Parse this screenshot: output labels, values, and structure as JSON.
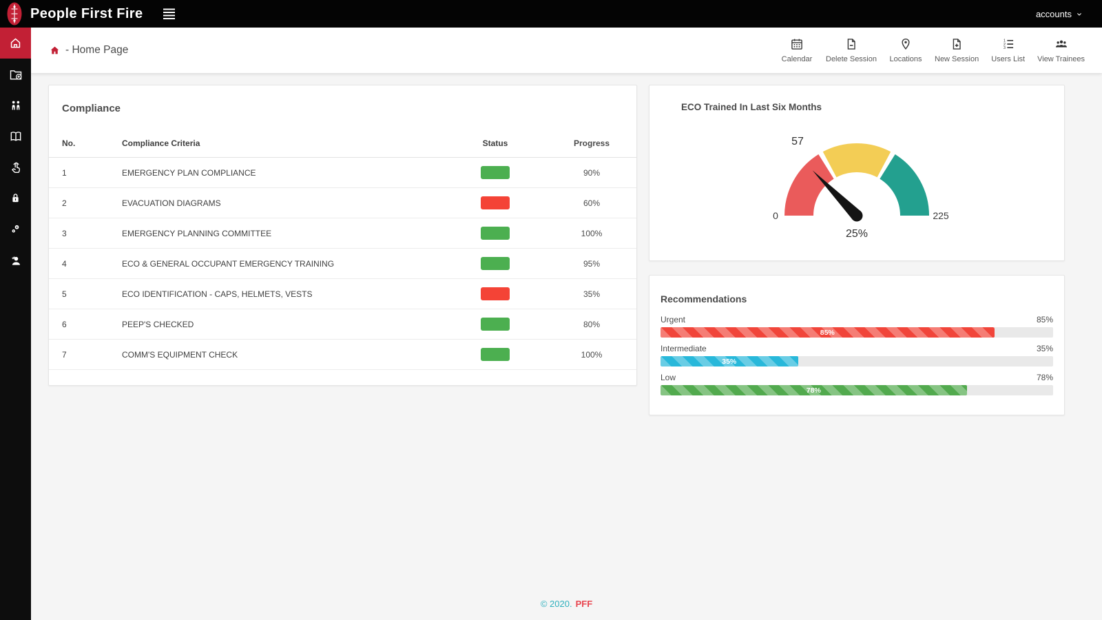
{
  "brand": {
    "name": "People First Fire",
    "logo": "fire-totem-logo"
  },
  "topbar": {
    "account_label": "accounts",
    "menu_icon": "hamburger-icon"
  },
  "sidebar": {
    "items": [
      {
        "icon": "home-icon",
        "active": true
      },
      {
        "icon": "folder-add-icon",
        "active": false
      },
      {
        "icon": "users-icon",
        "active": false
      },
      {
        "icon": "book-icon",
        "active": false
      },
      {
        "icon": "hand-pointer-icon",
        "active": false
      },
      {
        "icon": "lock-icon",
        "active": false
      },
      {
        "icon": "keys-icon",
        "active": false
      },
      {
        "icon": "user-cap-icon",
        "active": false
      }
    ]
  },
  "breadcrumb": {
    "icon": "home-icon",
    "label": "- Home Page"
  },
  "toolbar": {
    "actions": [
      {
        "label": "Calendar",
        "icon": "calendar-icon"
      },
      {
        "label": "Delete Session",
        "icon": "file-minus-icon"
      },
      {
        "label": "Locations",
        "icon": "map-pin-icon"
      },
      {
        "label": "New Session",
        "icon": "file-plus-icon"
      },
      {
        "label": "Users List",
        "icon": "numbered-list-icon"
      },
      {
        "label": "View Trainees",
        "icon": "people-group-icon"
      }
    ]
  },
  "compliance": {
    "title": "Compliance",
    "columns": [
      "No.",
      "Compliance Criteria",
      "Status",
      "Progress"
    ],
    "status_colors": {
      "green": "#4caf50",
      "red": "#f44336"
    },
    "rows": [
      {
        "no": "1",
        "criteria": "EMERGENCY PLAN COMPLIANCE",
        "status": "green",
        "progress": "90%"
      },
      {
        "no": "2",
        "criteria": "EVACUATION DIAGRAMS",
        "status": "red",
        "progress": "60%"
      },
      {
        "no": "3",
        "criteria": "EMERGENCY PLANNING COMMITTEE",
        "status": "green",
        "progress": "100%"
      },
      {
        "no": "4",
        "criteria": "ECO & GENERAL OCCUPANT EMERGENCY TRAINING",
        "status": "green",
        "progress": "95%"
      },
      {
        "no": "5",
        "criteria": "ECO IDENTIFICATION - CAPS, HELMETS, VESTS",
        "status": "red",
        "progress": "35%"
      },
      {
        "no": "6",
        "criteria": "PEEP'S CHECKED",
        "status": "green",
        "progress": "80%"
      },
      {
        "no": "7",
        "criteria": "COMM'S EQUIPMENT CHECK",
        "status": "green",
        "progress": "100%"
      }
    ]
  },
  "gauge": {
    "title": "ECO Trained In Last Six Months",
    "chart_data": {
      "type": "gauge",
      "min": 0,
      "max": 225,
      "value": 57,
      "value_label": "25%",
      "tick_labels": [
        "0",
        "57",
        "225"
      ],
      "segments": [
        {
          "name": "low",
          "color": "#ea5b5b"
        },
        {
          "name": "mid",
          "color": "#f3cd55"
        },
        {
          "name": "high",
          "color": "#23a08f"
        }
      ],
      "needle_color": "#141414"
    }
  },
  "recommendations": {
    "title": "Recommendations",
    "chart_data": {
      "type": "bar",
      "categories": [
        "Urgent",
        "Intermediate",
        "Low"
      ],
      "values": [
        85,
        35,
        78
      ],
      "xlim": [
        0,
        100
      ]
    },
    "bars": [
      {
        "label": "Urgent",
        "value": 85,
        "display": "85%",
        "color": "#f1453a"
      },
      {
        "label": "Intermediate",
        "value": 35,
        "display": "35%",
        "color": "#28b8da"
      },
      {
        "label": "Low",
        "value": 78,
        "display": "78%",
        "color": "#52aa4e"
      }
    ]
  },
  "footer": {
    "copyright": "© 2020.",
    "brand": "PFF"
  },
  "colors": {
    "accent_red": "#c22035",
    "footer_teal": "#2fb0bd",
    "footer_red": "#e8454f"
  }
}
